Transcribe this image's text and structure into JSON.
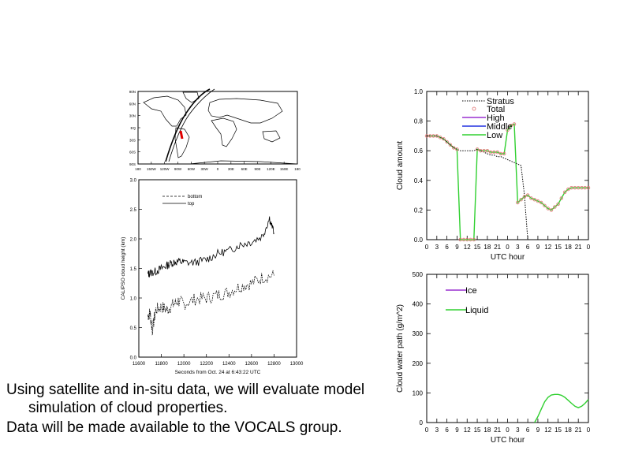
{
  "bullets": [
    "Using satellite and in-situ data, we will evaluate model simulation of cloud properties.",
    "Data will be made available to the VOCALS group."
  ],
  "chart_data": [
    {
      "type": "map",
      "name": "track-map",
      "ytick_labels": [
        "90N",
        "60N",
        "30N",
        "EQ",
        "30S",
        "60S",
        "90S"
      ],
      "xtick_labels": [
        "180",
        "150W",
        "120W",
        "90W",
        "60W",
        "30W",
        "0",
        "30E",
        "60E",
        "90E",
        "120E",
        "150E",
        "180"
      ],
      "colors": {
        "track": "#000000",
        "highlight": "#e00000"
      }
    },
    {
      "type": "line",
      "name": "calipso",
      "xlabel": "Seconds from Oct. 24 at 6:43:22 UTC",
      "ylabel": "CALIPSO cloud height (km)",
      "xlim": [
        11600,
        13000
      ],
      "ylim": [
        0.0,
        3.0
      ],
      "xticks": [
        11600,
        11800,
        12000,
        12200,
        12400,
        12600,
        12800,
        13000
      ],
      "yticks": [
        0.0,
        0.5,
        1.0,
        1.5,
        2.0,
        2.5,
        3.0
      ],
      "xtick_labels": [
        "11600",
        "11800",
        "12000",
        "12200",
        "12400",
        "12600",
        "12800",
        "13000"
      ],
      "ytick_labels": [
        "0.0",
        "0.5",
        "1.0",
        "1.5",
        "2.0",
        "2.5",
        "3.0"
      ],
      "legend": {
        "placement": "top-left"
      },
      "series": [
        {
          "name": "bottom",
          "style": "dashed",
          "x": [
            11680,
            11700,
            11720,
            11750,
            11800,
            11850,
            11900,
            11950,
            12000,
            12100,
            12200,
            12300,
            12400,
            12500,
            12600,
            12700,
            12800
          ],
          "y": [
            0.7,
            0.75,
            0.45,
            0.8,
            0.85,
            0.8,
            0.88,
            0.95,
            0.9,
            0.98,
            1.0,
            1.05,
            1.1,
            1.2,
            1.25,
            1.35,
            1.38
          ]
        },
        {
          "name": "top",
          "style": "solid",
          "x": [
            11680,
            11700,
            11750,
            11800,
            11850,
            11900,
            11950,
            12000,
            12100,
            12200,
            12300,
            12400,
            12500,
            12600,
            12700,
            12760,
            12800
          ],
          "y": [
            1.4,
            1.42,
            1.45,
            1.5,
            1.55,
            1.6,
            1.62,
            1.6,
            1.6,
            1.65,
            1.75,
            1.8,
            1.9,
            1.95,
            2.05,
            2.35,
            2.1
          ]
        }
      ]
    },
    {
      "type": "line",
      "name": "cloud-amount",
      "xlabel": "UTC hour",
      "ylabel": "Cloud amount",
      "ylim": [
        0.0,
        1.0
      ],
      "yticks": [
        0.0,
        0.2,
        0.4,
        0.6,
        0.8,
        1.0
      ],
      "ytick_labels": [
        "0.0",
        "0.2",
        "0.4",
        "0.6",
        "0.8",
        "1.0"
      ],
      "x_count": 49,
      "xtick_labels": [
        "0",
        "3",
        "6",
        "9",
        "12",
        "15",
        "18",
        "21",
        "0",
        "3",
        "6",
        "9",
        "12",
        "15",
        "18",
        "21",
        "0"
      ],
      "legend": {
        "placement": "top-left",
        "entries": [
          "Stratus",
          "Total",
          "High",
          "Middle",
          "Low"
        ]
      },
      "series": [
        {
          "name": "Stratus",
          "color": "#000000",
          "style": "dotted",
          "values": [
            0.7,
            0.7,
            0.7,
            0.7,
            0.69,
            0.68,
            0.66,
            0.64,
            0.62,
            0.61,
            0.6,
            0.6,
            0.6,
            0.6,
            0.6,
            0.61,
            0.6,
            0.59,
            0.58,
            0.57,
            0.57,
            0.56,
            0.56,
            0.55,
            0.54,
            0.53,
            0.52,
            0.51,
            0.5,
            0.3,
            0.0,
            0.0,
            0.0,
            0.0,
            0.0,
            0.0,
            0.0,
            0.0,
            0.0,
            0.0,
            0.0,
            0.0,
            0.0,
            0.0,
            0.0,
            0.0,
            0.0,
            0.0,
            0.0
          ]
        },
        {
          "name": "Total",
          "color": "#e07070",
          "style": "markers",
          "values": [
            0.7,
            0.7,
            0.7,
            0.7,
            0.69,
            0.68,
            0.66,
            0.64,
            0.62,
            0.61,
            0.0,
            0.0,
            0.0,
            0.0,
            0.0,
            0.61,
            0.6,
            0.6,
            0.6,
            0.59,
            0.59,
            0.59,
            0.58,
            0.58,
            0.74,
            0.77,
            0.78,
            0.25,
            0.27,
            0.29,
            0.3,
            0.28,
            0.27,
            0.26,
            0.25,
            0.23,
            0.21,
            0.2,
            0.22,
            0.24,
            0.28,
            0.32,
            0.34,
            0.35,
            0.35,
            0.35,
            0.35,
            0.35,
            0.35
          ]
        },
        {
          "name": "High",
          "color": "#9a30d0",
          "style": "solid",
          "values": []
        },
        {
          "name": "Middle",
          "color": "#2030e0",
          "style": "solid",
          "values": []
        },
        {
          "name": "Low",
          "color": "#30d030",
          "style": "solid",
          "values": [
            0.7,
            0.7,
            0.7,
            0.7,
            0.69,
            0.68,
            0.66,
            0.64,
            0.62,
            0.61,
            0.0,
            0.0,
            0.0,
            0.0,
            0.0,
            0.61,
            0.6,
            0.6,
            0.6,
            0.59,
            0.59,
            0.59,
            0.58,
            0.58,
            0.74,
            0.77,
            0.78,
            0.25,
            0.27,
            0.29,
            0.3,
            0.28,
            0.27,
            0.26,
            0.25,
            0.23,
            0.21,
            0.2,
            0.22,
            0.24,
            0.28,
            0.32,
            0.34,
            0.35,
            0.35,
            0.35,
            0.35,
            0.35,
            0.35
          ]
        }
      ]
    },
    {
      "type": "line",
      "name": "water-path",
      "xlabel": "UTC hour",
      "ylabel": "Cloud water path (g/m^2)",
      "ylim": [
        0,
        500
      ],
      "yticks": [
        0,
        100,
        200,
        300,
        400,
        500
      ],
      "ytick_labels": [
        "0",
        "100",
        "200",
        "300",
        "400",
        "500"
      ],
      "x_count": 49,
      "xtick_labels": [
        "0",
        "3",
        "6",
        "9",
        "12",
        "15",
        "18",
        "21",
        "0",
        "3",
        "6",
        "9",
        "12",
        "15",
        "18",
        "21",
        "0"
      ],
      "legend": {
        "placement": "top-left",
        "entries": [
          "Ice",
          "Liquid"
        ]
      },
      "series": [
        {
          "name": "Ice",
          "color": "#9a30d0",
          "values": []
        },
        {
          "name": "Liquid",
          "color": "#30d030",
          "values": [
            null,
            null,
            null,
            null,
            null,
            null,
            null,
            null,
            null,
            null,
            null,
            null,
            null,
            null,
            null,
            null,
            null,
            null,
            null,
            null,
            null,
            null,
            null,
            null,
            null,
            null,
            null,
            null,
            null,
            null,
            null,
            null,
            0,
            20,
            45,
            70,
            85,
            93,
            95,
            95,
            92,
            85,
            75,
            65,
            55,
            50,
            55,
            65,
            78
          ]
        }
      ]
    }
  ]
}
